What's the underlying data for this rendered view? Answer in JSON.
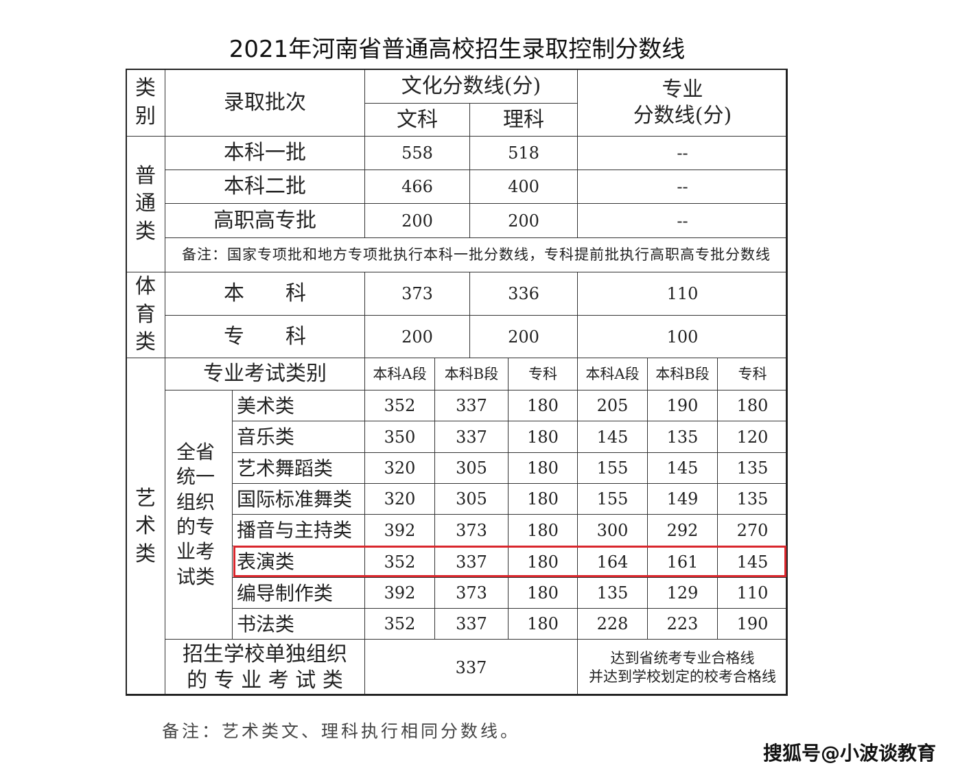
{
  "title": "2021年河南省普通高校招生录取控制分数线",
  "header": {
    "category": "类别",
    "batch": "录取批次",
    "culture": "文化分数线(分)",
    "arts": "文科",
    "science": "理科",
    "major": "专业\n分数线(分)"
  },
  "general": {
    "label": "普通类",
    "rows": [
      {
        "batch": "本科一批",
        "arts": "558",
        "science": "518",
        "major": "--"
      },
      {
        "batch": "本科二批",
        "arts": "466",
        "science": "400",
        "major": "--"
      },
      {
        "batch": "高职高专批",
        "arts": "200",
        "science": "200",
        "major": "--"
      }
    ],
    "note": "备注：国家专项批和地方专项批执行本科一批分数线，专科提前批执行高职高专批分数线"
  },
  "sports": {
    "label": "体育类",
    "rows": [
      {
        "batch": "本　　科",
        "arts": "373",
        "science": "336",
        "major": "110"
      },
      {
        "batch": "专　　科",
        "arts": "200",
        "science": "200",
        "major": "100"
      }
    ]
  },
  "art": {
    "label": "艺术类",
    "category_header": "专业考试类别",
    "columns": [
      "本科A段",
      "本科B段",
      "专科",
      "本科A段",
      "本科B段",
      "专科"
    ],
    "unified_label": "全省统一组织的专业考试类",
    "rows": [
      {
        "name": "美术类",
        "scores": [
          "352",
          "337",
          "180",
          "205",
          "190",
          "180"
        ]
      },
      {
        "name": "音乐类",
        "scores": [
          "350",
          "337",
          "180",
          "145",
          "135",
          "120"
        ]
      },
      {
        "name": "艺术舞蹈类",
        "scores": [
          "320",
          "305",
          "180",
          "155",
          "145",
          "135"
        ]
      },
      {
        "name": "国际标准舞类",
        "scores": [
          "320",
          "305",
          "180",
          "155",
          "149",
          "135"
        ]
      },
      {
        "name": "播音与主持类",
        "scores": [
          "392",
          "373",
          "180",
          "300",
          "292",
          "270"
        ]
      },
      {
        "name": "表演类",
        "scores": [
          "352",
          "337",
          "180",
          "164",
          "161",
          "145"
        ],
        "highlighted": true
      },
      {
        "name": "编导制作类",
        "scores": [
          "392",
          "373",
          "180",
          "135",
          "129",
          "110"
        ]
      },
      {
        "name": "书法类",
        "scores": [
          "352",
          "337",
          "180",
          "228",
          "223",
          "190"
        ]
      }
    ],
    "school": {
      "label": "招生学校单独组织\n的 专 业 考 试 类",
      "culture": "337",
      "major": "达到省统考专业合格线\n并达到学校划定的校考合格线"
    }
  },
  "footnote": "备注：艺术类文、理科执行相同分数线。",
  "highlight_color": "#d9262c",
  "source_watermark": "搜狐号@小波谈教育"
}
